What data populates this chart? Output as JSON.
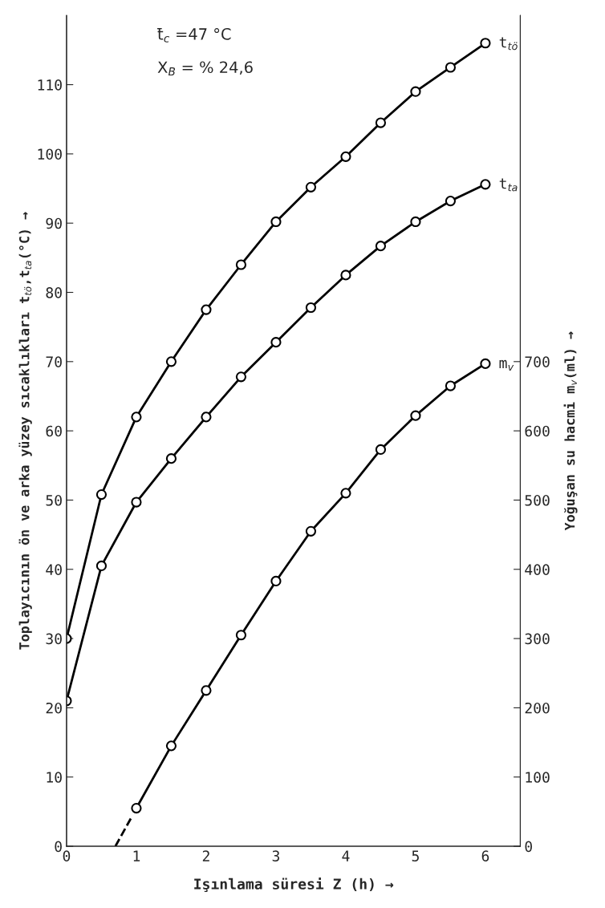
{
  "chart_data": {
    "type": "line",
    "xlabel": "Işınlama süresi Z (h) →",
    "ylabel": "Toplayıcının ön ve arka yüzey sıcaklıkları t$_{tö}$,t$_{ta}$(°C) →",
    "y2label": "Yoğuşan su hacmi m$_{v}$(ml) →",
    "annotations": [
      "t̄$_{c}$ =47 °C",
      "X$_{B}$ = % 24,6"
    ],
    "xlim": [
      0,
      6.5
    ],
    "xticks": [
      0,
      1,
      2,
      3,
      4,
      5,
      6
    ],
    "ylim": [
      0,
      120
    ],
    "yticks": [
      0,
      10,
      20,
      30,
      40,
      50,
      60,
      70,
      80,
      90,
      100,
      110
    ],
    "y2lim": [
      0,
      1200
    ],
    "y2ticks": [
      0,
      100,
      200,
      300,
      400,
      500,
      600,
      700
    ],
    "grid": false,
    "legend": false,
    "marker": "circle",
    "line_style": "solid",
    "series": [
      {
        "name": "t$_{tö}$",
        "color": "#000000",
        "x": [
          0,
          0.5,
          1,
          1.5,
          2,
          2.5,
          3,
          3.5,
          4,
          4.5,
          5,
          5.5,
          6
        ],
        "values": [
          30,
          50.8,
          62,
          70,
          77.5,
          84,
          90.2,
          95.2,
          99.6,
          104.5,
          109,
          112.5,
          116
        ]
      },
      {
        "name": "t$_{ta}$",
        "color": "#000000",
        "x": [
          0,
          0.5,
          1,
          1.5,
          2,
          2.5,
          3,
          3.5,
          4,
          4.5,
          5,
          5.5,
          6
        ],
        "values": [
          21,
          40.5,
          49.7,
          56,
          62,
          67.8,
          72.8,
          77.8,
          82.5,
          86.7,
          90.2,
          93.2,
          95.6
        ]
      },
      {
        "color": "#000000",
        "axis": "y2",
        "x": [
          0.7,
          0.92
        ],
        "values": [
          0,
          40
        ],
        "marker": "none",
        "line_style": "dashed"
      },
      {
        "name": "m$_{v}$",
        "color": "#000000",
        "axis": "y2",
        "x": [
          1,
          1.5,
          2,
          2.5,
          3,
          3.5,
          4,
          4.5,
          5,
          5.5,
          6
        ],
        "values": [
          55,
          145,
          225,
          305,
          383,
          455,
          510,
          573,
          622,
          665,
          697
        ]
      }
    ]
  }
}
